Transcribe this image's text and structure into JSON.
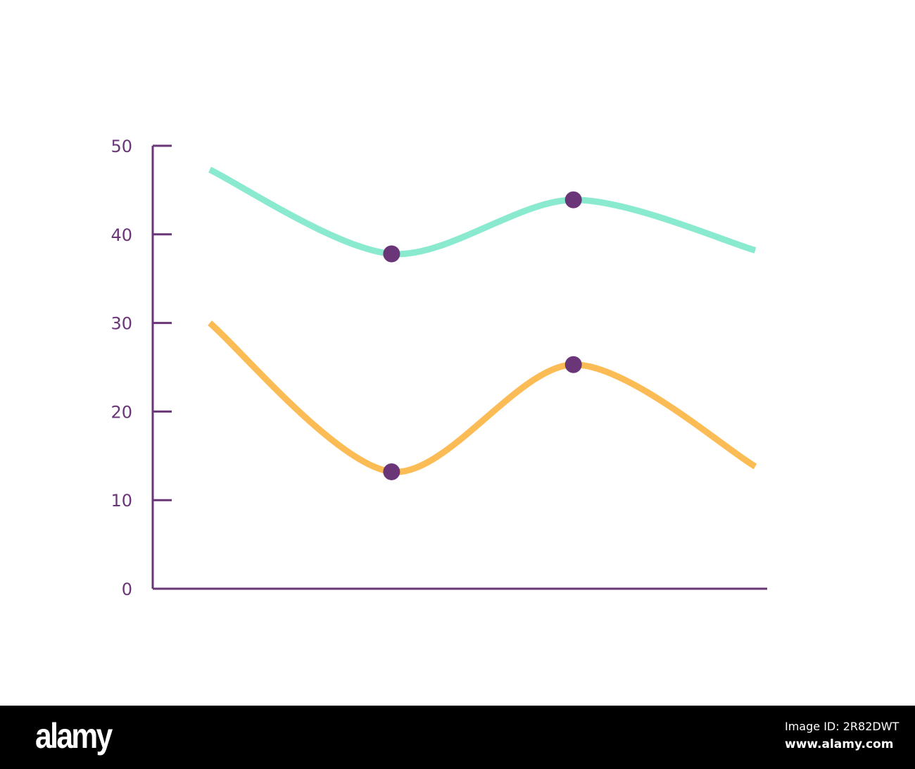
{
  "chart_data": {
    "type": "line",
    "title": "",
    "xlabel": "",
    "ylabel": "",
    "ylim": [
      0,
      50
    ],
    "yticks": [
      "0",
      "10",
      "20",
      "30",
      "40",
      "50"
    ],
    "x": [
      1,
      2,
      3,
      4
    ],
    "grid": false,
    "series": [
      {
        "name": "teal",
        "color": "#8aeacf",
        "values": [
          47.3,
          37.8,
          43.9,
          38.2
        ],
        "markers": [
          false,
          true,
          true,
          false
        ]
      },
      {
        "name": "orange",
        "color": "#fcbc55",
        "values": [
          30.0,
          13.2,
          25.3,
          13.8
        ],
        "markers": [
          false,
          true,
          true,
          false
        ]
      }
    ],
    "axis_color": "#6a3678",
    "marker_color": "#6a3678"
  },
  "watermark": {
    "logo": "alamy",
    "image_id": "Image ID: 2R82DWT",
    "site": "www.alamy.com"
  }
}
